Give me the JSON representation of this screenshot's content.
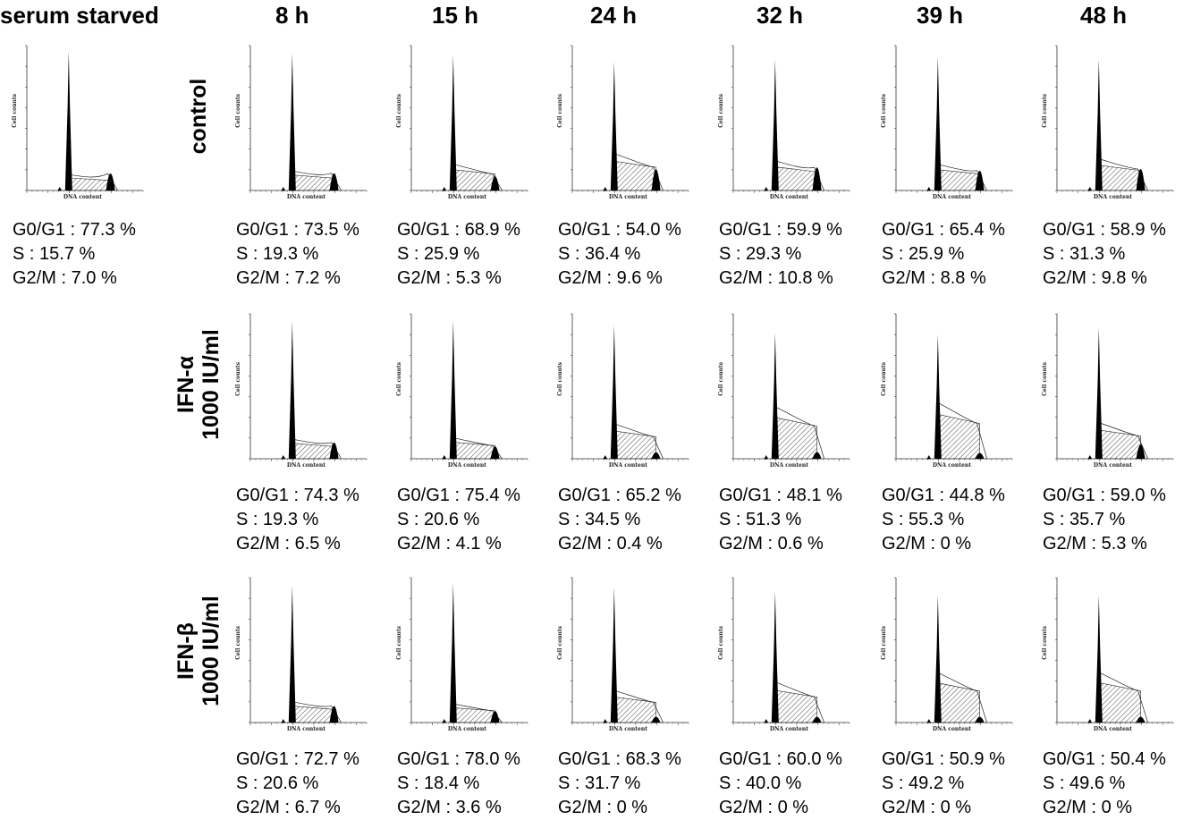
{
  "columns": [
    {
      "id": "sf",
      "title": "serum starved"
    },
    {
      "id": "t8",
      "title": "8 h"
    },
    {
      "id": "t15",
      "title": "15 h"
    },
    {
      "id": "t24",
      "title": "24 h"
    },
    {
      "id": "t32",
      "title": "32 h"
    },
    {
      "id": "t39",
      "title": "39 h"
    },
    {
      "id": "t48",
      "title": "48 h"
    }
  ],
  "rows": [
    {
      "id": "control",
      "label_lines": [
        "control"
      ]
    },
    {
      "id": "ifna",
      "label_lines": [
        "IFN-α",
        "1000 IU/ml"
      ]
    },
    {
      "id": "ifnb",
      "label_lines": [
        "IFN-β",
        "1000 IU/ml"
      ]
    }
  ],
  "axis_text": {
    "ylabel": "Cell counts",
    "xlabel": "DNA content"
  },
  "chart_data": {
    "type": "histogram-grid",
    "description_fields": [
      "G0/G1",
      "S",
      "G2/M"
    ],
    "panels": [
      {
        "row": "control",
        "col": "sf",
        "g0g1": "77.3 %",
        "s": "15.7 %",
        "g2m": "7.0 %",
        "g0g1_val": 77.3,
        "s_val": 15.7,
        "g2m_val": 7.0
      },
      {
        "row": "control",
        "col": "t8",
        "g0g1": "73.5 %",
        "s": "19.3 %",
        "g2m": "7.2 %",
        "g0g1_val": 73.5,
        "s_val": 19.3,
        "g2m_val": 7.2
      },
      {
        "row": "control",
        "col": "t15",
        "g0g1": "68.9 %",
        "s": "25.9 %",
        "g2m": "5.3 %",
        "g0g1_val": 68.9,
        "s_val": 25.9,
        "g2m_val": 5.3
      },
      {
        "row": "control",
        "col": "t24",
        "g0g1": "54.0 %",
        "s": "36.4 %",
        "g2m": "9.6 %",
        "g0g1_val": 54.0,
        "s_val": 36.4,
        "g2m_val": 9.6
      },
      {
        "row": "control",
        "col": "t32",
        "g0g1": "59.9 %",
        "s": "29.3 %",
        "g2m": "10.8 %",
        "g0g1_val": 59.9,
        "s_val": 29.3,
        "g2m_val": 10.8
      },
      {
        "row": "control",
        "col": "t39",
        "g0g1": "65.4 %",
        "s": "25.9 %",
        "g2m": "8.8 %",
        "g0g1_val": 65.4,
        "s_val": 25.9,
        "g2m_val": 8.8
      },
      {
        "row": "control",
        "col": "t48",
        "g0g1": "58.9 %",
        "s": "31.3 %",
        "g2m": "9.8 %",
        "g0g1_val": 58.9,
        "s_val": 31.3,
        "g2m_val": 9.8
      },
      {
        "row": "ifna",
        "col": "t8",
        "g0g1": "74.3 %",
        "s": "19.3 %",
        "g2m": "6.5 %",
        "g0g1_val": 74.3,
        "s_val": 19.3,
        "g2m_val": 6.5
      },
      {
        "row": "ifna",
        "col": "t15",
        "g0g1": "75.4 %",
        "s": "20.6 %",
        "g2m": "4.1 %",
        "g0g1_val": 75.4,
        "s_val": 20.6,
        "g2m_val": 4.1
      },
      {
        "row": "ifna",
        "col": "t24",
        "g0g1": "65.2 %",
        "s": "34.5 %",
        "g2m": "0.4 %",
        "g0g1_val": 65.2,
        "s_val": 34.5,
        "g2m_val": 0.4
      },
      {
        "row": "ifna",
        "col": "t32",
        "g0g1": "48.1 %",
        "s": "51.3 %",
        "g2m": "0.6 %",
        "g0g1_val": 48.1,
        "s_val": 51.3,
        "g2m_val": 0.6
      },
      {
        "row": "ifna",
        "col": "t39",
        "g0g1": "44.8 %",
        "s": "55.3 %",
        "g2m": "0 %",
        "g0g1_val": 44.8,
        "s_val": 55.3,
        "g2m_val": 0
      },
      {
        "row": "ifna",
        "col": "t48",
        "g0g1": "59.0 %",
        "s": "35.7 %",
        "g2m": "5.3 %",
        "g0g1_val": 59.0,
        "s_val": 35.7,
        "g2m_val": 5.3
      },
      {
        "row": "ifnb",
        "col": "t8",
        "g0g1": "72.7 %",
        "s": "20.6 %",
        "g2m": "6.7 %",
        "g0g1_val": 72.7,
        "s_val": 20.6,
        "g2m_val": 6.7
      },
      {
        "row": "ifnb",
        "col": "t15",
        "g0g1": "78.0 %",
        "s": "18.4 %",
        "g2m": "3.6 %",
        "g0g1_val": 78.0,
        "s_val": 18.4,
        "g2m_val": 3.6
      },
      {
        "row": "ifnb",
        "col": "t24",
        "g0g1": "68.3 %",
        "s": "31.7 %",
        "g2m": "0 %",
        "g0g1_val": 68.3,
        "s_val": 31.7,
        "g2m_val": 0
      },
      {
        "row": "ifnb",
        "col": "t32",
        "g0g1": "60.0 %",
        "s": "40.0 %",
        "g2m": "0 %",
        "g0g1_val": 60.0,
        "s_val": 40.0,
        "g2m_val": 0
      },
      {
        "row": "ifnb",
        "col": "t39",
        "g0g1": "50.9 %",
        "s": "49.2 %",
        "g2m": "0 %",
        "g0g1_val": 50.9,
        "s_val": 49.2,
        "g2m_val": 0
      },
      {
        "row": "ifnb",
        "col": "t48",
        "g0g1": "50.4 %",
        "s": "49.6 %",
        "g2m": "0 %",
        "g0g1_val": 50.4,
        "s_val": 49.6,
        "g2m_val": 0
      }
    ]
  }
}
